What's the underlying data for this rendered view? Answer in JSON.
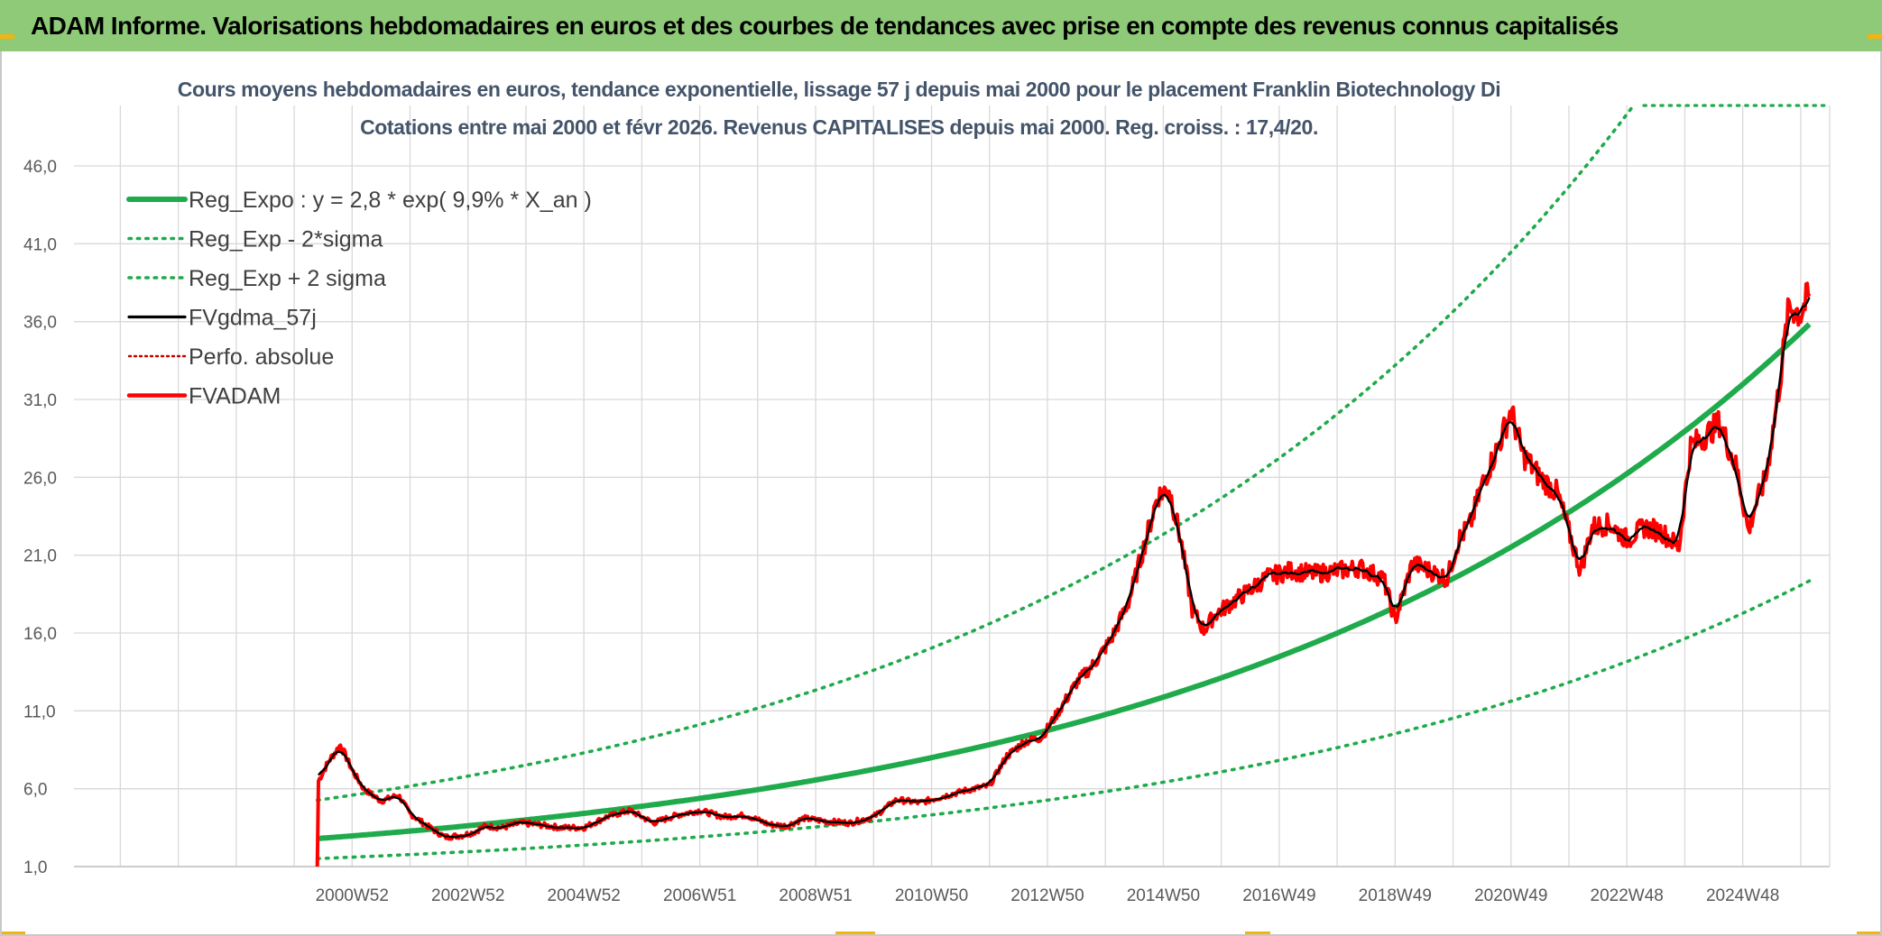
{
  "banner": {
    "title": "ADAM Informe. Valorisations hebdomadaires en euros et des courbes de tendances avec prise en compte des revenus connus capitalisés"
  },
  "colors": {
    "banner_bg": "#8fca78",
    "reg_expo": "#1faa4b",
    "fvgdma": "#000000",
    "fvadam": "#ff0000",
    "perfo": "#c00000",
    "subtitle": "#44546a"
  },
  "chart_data": {
    "type": "line",
    "title": "Cours moyens hebdomadaires en euros, tendance exponentielle, lissage 57 j depuis mai 2000 pour le placement Franklin Biotechnology Di",
    "subtitle": "Cotations entre mai 2000 et févr 2026. Revenus CAPITALISES depuis mai 2000. Reg. croiss. : 17,4/20.",
    "xlabel": "",
    "ylabel": "",
    "ylim": [
      1.0,
      50.0
    ],
    "y_ticks": [
      "1,0",
      "6,0",
      "11,0",
      "16,0",
      "21,0",
      "26,0",
      "31,0",
      "36,0",
      "41,0",
      "46,0"
    ],
    "x_ticks": [
      {
        "x": 2001.0,
        "label": "2000W52"
      },
      {
        "x": 2003.0,
        "label": "2002W52"
      },
      {
        "x": 2005.0,
        "label": "2004W52"
      },
      {
        "x": 2007.0,
        "label": "2006W51"
      },
      {
        "x": 2009.0,
        "label": "2008W51"
      },
      {
        "x": 2011.0,
        "label": "2010W50"
      },
      {
        "x": 2013.0,
        "label": "2012W50"
      },
      {
        "x": 2015.0,
        "label": "2014W50"
      },
      {
        "x": 2017.0,
        "label": "2016W49"
      },
      {
        "x": 2019.0,
        "label": "2018W49"
      },
      {
        "x": 2021.0,
        "label": "2020W49"
      },
      {
        "x": 2023.0,
        "label": "2022W48"
      },
      {
        "x": 2025.0,
        "label": "2024W48"
      }
    ],
    "xlim": [
      1996.2,
      2026.5
    ],
    "grid": true,
    "legend_position": "top-left",
    "regression": {
      "a": 2.8,
      "rate": 0.099,
      "x0": 2000.4,
      "x_end": 2026.15
    },
    "series": [
      {
        "name": "Reg_Expo : y = 2,8 * exp( 9,9% *  X_an )",
        "style": "solid-thick",
        "color": "#1faa4b"
      },
      {
        "name": "Reg_Exp - 2*sigma",
        "style": "dotted",
        "color": "#1faa4b",
        "factor": 0.54
      },
      {
        "name": "Reg_Exp + 2 sigma",
        "style": "dotted",
        "color": "#1faa4b",
        "factor": 1.88
      },
      {
        "name": "FVgdma_57j",
        "style": "solid",
        "color": "#000000"
      },
      {
        "name": "Perfo. absolue",
        "style": "dotted",
        "color": "#c00000"
      },
      {
        "name": "FVADAM",
        "style": "solid-thick",
        "color": "#ff0000",
        "x": [
          2000.4,
          2000.42,
          2000.6,
          2000.8,
          2001.0,
          2001.2,
          2001.5,
          2001.8,
          2002.0,
          2002.3,
          2002.6,
          2002.9,
          2003.1,
          2003.3,
          2003.6,
          2003.9,
          2004.2,
          2004.6,
          2005.0,
          2005.4,
          2005.8,
          2006.2,
          2006.6,
          2007.0,
          2007.4,
          2007.8,
          2008.2,
          2008.5,
          2008.8,
          2009.2,
          2009.6,
          2010.0,
          2010.4,
          2010.8,
          2011.2,
          2011.6,
          2012.0,
          2012.3,
          2012.6,
          2012.9,
          2013.2,
          2013.5,
          2013.8,
          2014.1,
          2014.4,
          2014.7,
          2014.9,
          2015.1,
          2015.3,
          2015.5,
          2015.7,
          2015.9,
          2016.2,
          2016.5,
          2016.8,
          2017.2,
          2017.6,
          2018.0,
          2018.4,
          2018.8,
          2019.0,
          2019.3,
          2019.6,
          2019.9,
          2020.1,
          2020.3,
          2020.5,
          2020.8,
          2021.0,
          2021.2,
          2021.5,
          2021.8,
          2022.0,
          2022.2,
          2022.4,
          2022.7,
          2023.0,
          2023.3,
          2023.6,
          2023.9,
          2024.1,
          2024.3,
          2024.6,
          2024.9,
          2025.1,
          2025.2,
          2025.4,
          2025.6,
          2025.8,
          2026.0,
          2026.15
        ],
        "values": [
          1.0,
          6.5,
          7.8,
          8.8,
          7.2,
          6.0,
          5.2,
          5.6,
          4.4,
          3.6,
          2.9,
          3.0,
          3.2,
          3.6,
          3.5,
          3.8,
          3.7,
          3.5,
          3.5,
          4.2,
          4.6,
          3.8,
          4.3,
          4.6,
          4.2,
          4.3,
          3.7,
          3.6,
          4.1,
          3.9,
          3.8,
          4.2,
          5.3,
          5.1,
          5.5,
          5.9,
          6.2,
          8.1,
          9.0,
          9.3,
          11.0,
          12.8,
          14.0,
          15.6,
          18.0,
          22.0,
          24.8,
          25.3,
          22.0,
          17.5,
          16.2,
          17.2,
          18.0,
          18.8,
          19.6,
          20.0,
          19.8,
          20.0,
          20.2,
          19.5,
          16.8,
          20.5,
          20.0,
          19.5,
          22.0,
          23.0,
          25.5,
          28.2,
          30.3,
          27.5,
          26.0,
          25.0,
          22.5,
          20.0,
          22.8,
          23.0,
          22.0,
          22.8,
          22.5,
          21.5,
          28.0,
          28.5,
          29.5,
          26.5,
          22.5,
          24.0,
          26.0,
          31.0,
          37.0,
          36.5,
          37.8
        ]
      }
    ]
  }
}
